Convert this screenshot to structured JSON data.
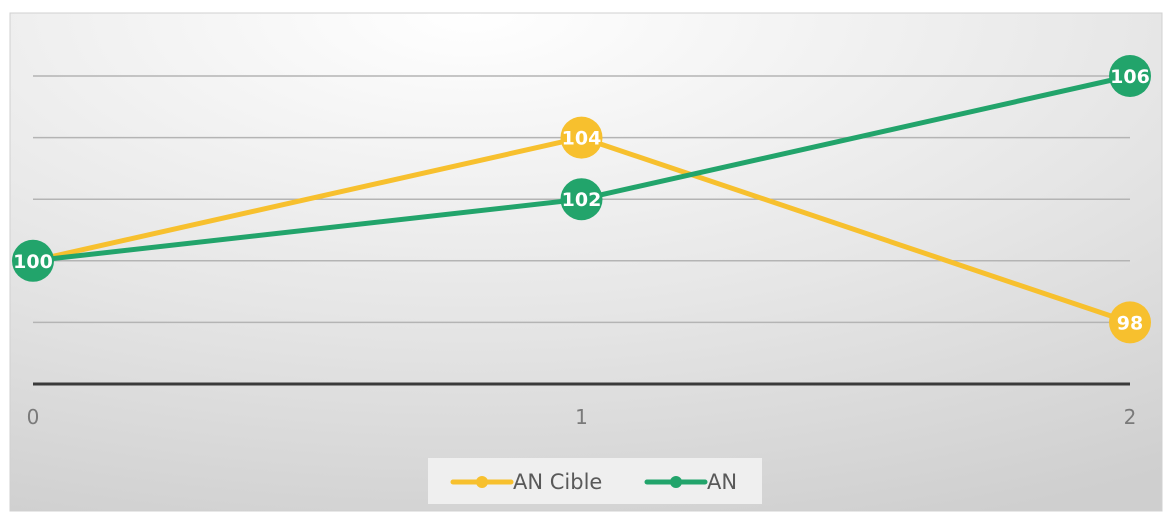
{
  "chart_data": {
    "type": "line",
    "x": [
      0,
      1,
      2
    ],
    "x_tick_labels": [
      "0",
      "1",
      "2"
    ],
    "series": [
      {
        "name": "AN Cible",
        "values": [
          100,
          104,
          98
        ],
        "color": "#F7C02E"
      },
      {
        "name": "AN",
        "values": [
          100,
          102,
          106
        ],
        "color": "#22A46B"
      }
    ],
    "data_labels": {
      "AN Cible": [
        "",
        "104",
        "98"
      ],
      "AN": [
        "100",
        "102",
        "106"
      ]
    },
    "ylim": [
      96,
      106
    ],
    "grid": true,
    "legend": "bottom",
    "title": "",
    "xlabel": "",
    "ylabel": ""
  }
}
